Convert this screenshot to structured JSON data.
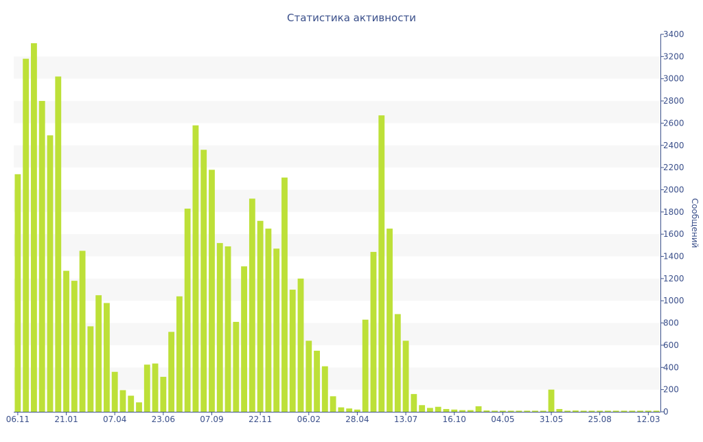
{
  "chart_data": {
    "type": "bar",
    "title": "Статистика активности",
    "xlabel": "",
    "ylabel": "Сообщений",
    "ylim": [
      0,
      3400
    ],
    "y_ticks": [
      0,
      200,
      400,
      600,
      800,
      1000,
      1200,
      1400,
      1600,
      1800,
      2000,
      2200,
      2400,
      2600,
      2800,
      3000,
      3200,
      3400
    ],
    "y_axis_side": "right",
    "grid": "alternating horizontal bands",
    "x_tick_labels": [
      {
        "label": "06.11",
        "index": 0
      },
      {
        "label": "21.01",
        "index": 6
      },
      {
        "label": "07.04",
        "index": 12
      },
      {
        "label": "23.06",
        "index": 18
      },
      {
        "label": "07.09",
        "index": 24
      },
      {
        "label": "22.11",
        "index": 30
      },
      {
        "label": "06.02",
        "index": 36
      },
      {
        "label": "28.04",
        "index": 42
      },
      {
        "label": "13.07",
        "index": 48
      },
      {
        "label": "16.10",
        "index": 54
      },
      {
        "label": "04.05",
        "index": 60
      },
      {
        "label": "31.05",
        "index": 66
      },
      {
        "label": "25.08",
        "index": 72
      },
      {
        "label": "12.03",
        "index": 78
      }
    ],
    "values": [
      2140,
      3180,
      3320,
      2800,
      2490,
      3020,
      1270,
      1180,
      1450,
      770,
      1050,
      980,
      360,
      195,
      145,
      85,
      425,
      435,
      315,
      720,
      1040,
      1830,
      2580,
      2360,
      2180,
      1520,
      1490,
      810,
      1310,
      1920,
      1720,
      1650,
      1470,
      2110,
      1100,
      1200,
      640,
      550,
      410,
      140,
      40,
      30,
      20,
      830,
      1440,
      2670,
      1650,
      880,
      640,
      160,
      60,
      35,
      45,
      25,
      20,
      15,
      15,
      50,
      12,
      10,
      10,
      10,
      10,
      10,
      10,
      10,
      200,
      25,
      10,
      12,
      10,
      10,
      10,
      10,
      10,
      10,
      10,
      10,
      10,
      10
    ],
    "colors": {
      "bar": "#bde038",
      "text": "#3a4f8a",
      "band": "#f7f7f7",
      "axis": "#3a4f8a"
    }
  }
}
